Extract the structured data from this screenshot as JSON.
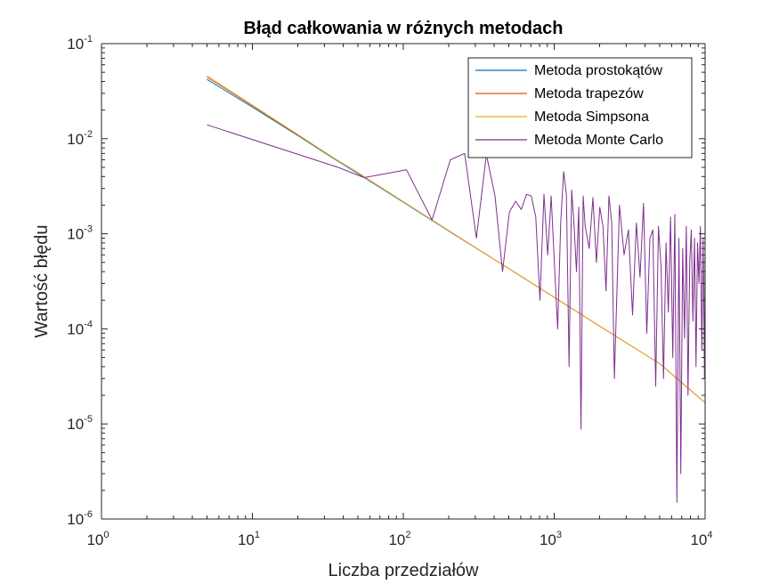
{
  "chart_data": {
    "type": "line",
    "title": "Błąd całkowania w różnych metodach",
    "xlabel": "Liczba przedziałów",
    "ylabel": "Wartość błędu",
    "xscale": "log",
    "yscale": "log",
    "xlim": [
      1,
      10000
    ],
    "ylim": [
      1e-06,
      0.1
    ],
    "x_ticks": [
      {
        "base": "10",
        "exp": "0",
        "value": 1
      },
      {
        "base": "10",
        "exp": "1",
        "value": 10
      },
      {
        "base": "10",
        "exp": "2",
        "value": 100
      },
      {
        "base": "10",
        "exp": "3",
        "value": 1000
      },
      {
        "base": "10",
        "exp": "4",
        "value": 10000
      }
    ],
    "y_ticks": [
      {
        "base": "10",
        "exp": "-6",
        "value": 1e-06
      },
      {
        "base": "10",
        "exp": "-5",
        "value": 1e-05
      },
      {
        "base": "10",
        "exp": "-4",
        "value": 0.0001
      },
      {
        "base": "10",
        "exp": "-3",
        "value": 0.001
      },
      {
        "base": "10",
        "exp": "-2",
        "value": 0.01
      },
      {
        "base": "10",
        "exp": "-1",
        "value": 0.1
      }
    ],
    "grid": false,
    "legend_position": "top-right",
    "series": [
      {
        "name": "Metoda prostokątów",
        "color": "#0072BD",
        "x": [
          5,
          10,
          20,
          35,
          50,
          100,
          200,
          500,
          1000,
          2000,
          5000,
          10000
        ],
        "y": [
          0.042,
          0.0215,
          0.0108,
          0.0061,
          0.0043,
          0.00215,
          0.00107,
          0.00043,
          0.000215,
          0.000107,
          4.3e-05,
          1.67e-05
        ]
      },
      {
        "name": "Metoda trapezów",
        "color": "#D95319",
        "x": [
          5,
          10,
          20,
          35,
          50,
          100,
          200,
          500,
          1000,
          2000,
          5000,
          10000
        ],
        "y": [
          0.0445,
          0.0222,
          0.011,
          0.0062,
          0.0044,
          0.00218,
          0.00108,
          0.00043,
          0.000215,
          0.000107,
          4.3e-05,
          1.67e-05
        ]
      },
      {
        "name": "Metoda Simpsona",
        "color": "#EDB120",
        "x": [
          5,
          10,
          20,
          35,
          50,
          100,
          200,
          500,
          1000,
          2000,
          5000,
          10000
        ],
        "y": [
          0.046,
          0.0226,
          0.0111,
          0.0062,
          0.0044,
          0.00218,
          0.00108,
          0.00043,
          0.000215,
          0.000107,
          4.3e-05,
          1.67e-05
        ]
      },
      {
        "name": "Metoda Monte Carlo",
        "color": "#7E2F8E",
        "x": [
          5,
          37,
          55,
          105,
          155,
          205,
          255,
          305,
          355,
          405,
          455,
          505,
          555,
          605,
          655,
          705,
          755,
          805,
          855,
          905,
          955,
          1005,
          1055,
          1105,
          1155,
          1205,
          1255,
          1305,
          1355,
          1405,
          1455,
          1505,
          1555,
          1605,
          1705,
          1805,
          1905,
          2005,
          2105,
          2205,
          2305,
          2405,
          2505,
          2705,
          2905,
          3105,
          3305,
          3505,
          3705,
          3905,
          4105,
          4305,
          4505,
          4705,
          4905,
          5105,
          5305,
          5505,
          5705,
          5905,
          6105,
          6305,
          6505,
          6705,
          6905,
          7105,
          7305,
          7505,
          7705,
          7905,
          8105,
          8305,
          8505,
          8705,
          8905,
          9105,
          9305,
          9505,
          9705,
          9905,
          10000
        ],
        "y": [
          0.014,
          0.005,
          0.0039,
          0.0047,
          0.0014,
          0.006,
          0.007,
          0.0009,
          0.0068,
          0.0025,
          0.0004,
          0.0017,
          0.0022,
          0.0018,
          0.0026,
          0.0025,
          0.0015,
          0.0002,
          0.0026,
          0.0006,
          0.0025,
          0.00045,
          0.0001,
          0.0013,
          0.0045,
          0.0026,
          4e-05,
          0.0029,
          0.0012,
          0.0004,
          0.0019,
          8.8e-06,
          0.0025,
          0.0012,
          0.0007,
          0.0024,
          0.0005,
          0.0019,
          0.0012,
          0.00025,
          0.0025,
          0.0013,
          3e-05,
          0.002,
          0.0006,
          0.0011,
          0.00014,
          0.0013,
          0.00035,
          0.0021,
          9e-05,
          0.0009,
          0.0011,
          2.5e-05,
          0.0012,
          0.00045,
          3e-05,
          0.0008,
          0.00015,
          0.0015,
          5e-05,
          0.0016,
          1.5e-06,
          0.0009,
          3e-06,
          0.0007,
          8e-05,
          0.0012,
          2e-05,
          0.0005,
          0.0011,
          0.00012,
          0.0009,
          4e-05,
          0.0008,
          0.0003,
          0.0012,
          6e-05,
          0.0009,
          3e-05,
          0.0007
        ]
      }
    ]
  }
}
